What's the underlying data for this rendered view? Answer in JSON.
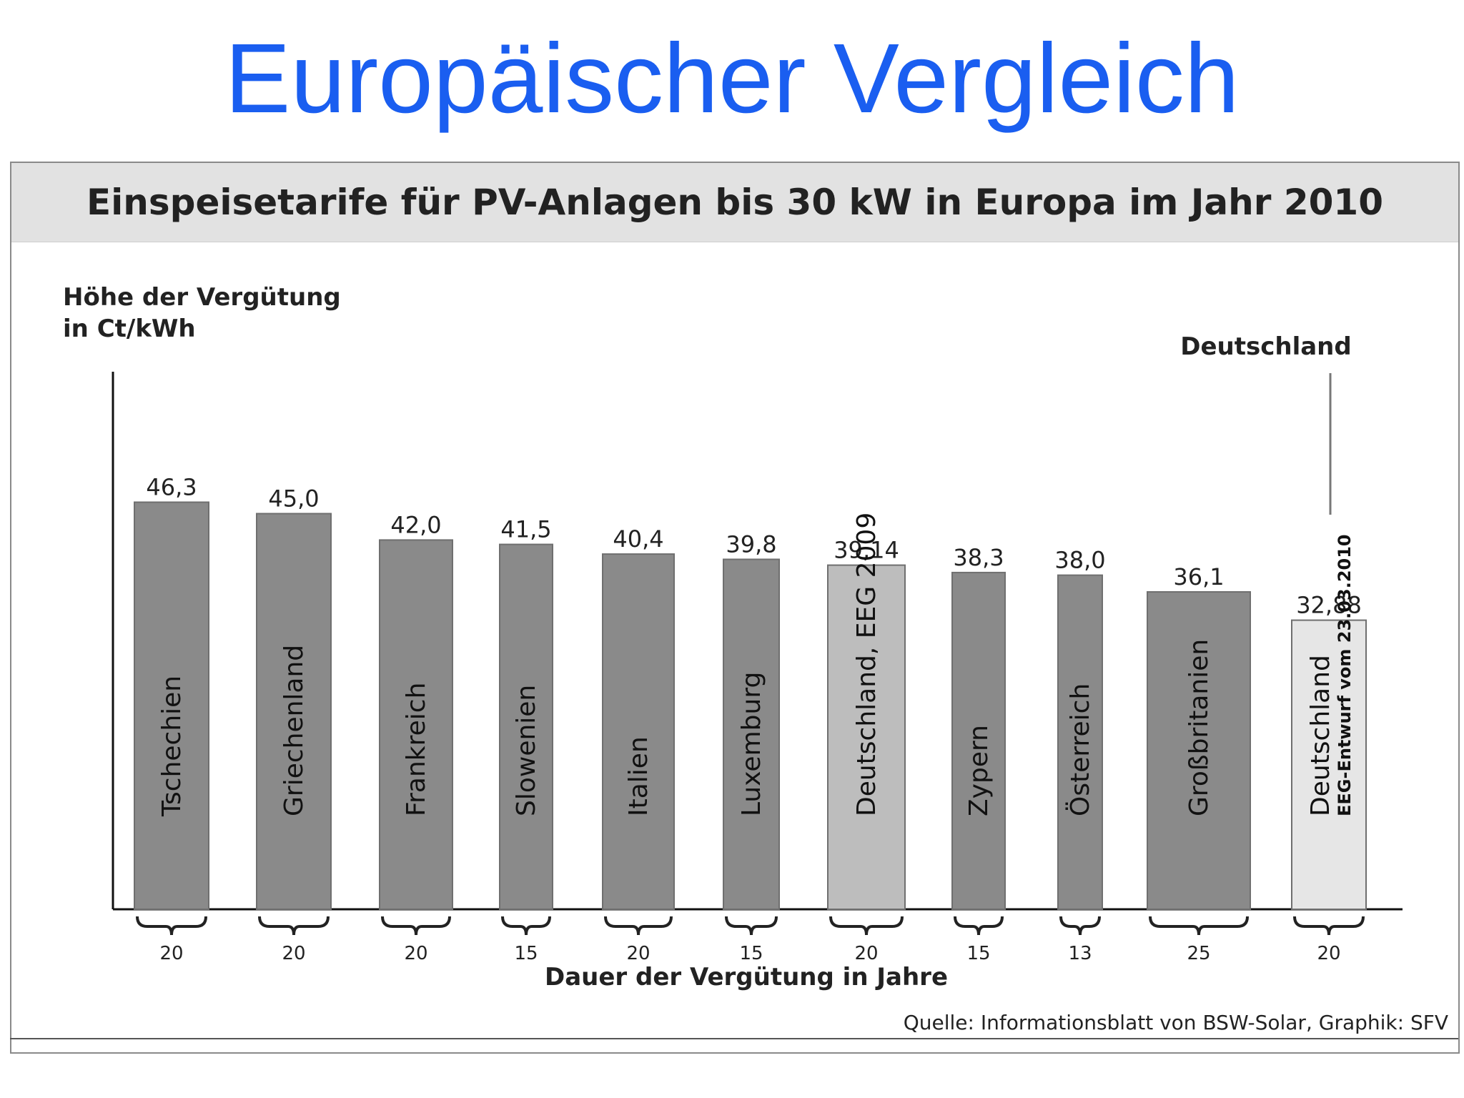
{
  "slide": {
    "title": "Europäischer Vergleich"
  },
  "chart_data": {
    "type": "bar",
    "title": "Einspeisetarife für PV-Anlagen bis 30 kW in Europa im Jahr 2010",
    "ylabel_line1": "Höhe der Vergütung",
    "ylabel_line2": "in Ct/kWh",
    "xlabel": "Dauer der Vergütung in Jahre",
    "source": "Quelle: Informationsblatt von BSW-Solar, Graphik: SFV",
    "annotation": "Deutschland",
    "ylim": [
      0,
      50
    ],
    "categories": [
      "Tschechien",
      "Griechenland",
      "Frankreich",
      "Slowenien",
      "Italien",
      "Luxemburg",
      "Deutschland, EEG 2009",
      "Zypern",
      "Österreich",
      "Großbritanien",
      "Deutschland"
    ],
    "category_sublabels": [
      "",
      "",
      "",
      "",
      "",
      "",
      "",
      "",
      "",
      "",
      "EEG-Entwurf vom 23.03.2010"
    ],
    "values": [
      46.3,
      45.0,
      42.0,
      41.5,
      40.4,
      39.8,
      39.14,
      38.3,
      38.0,
      36.1,
      32.88
    ],
    "value_labels": [
      "46,3",
      "45,0",
      "42,0",
      "41,5",
      "40,4",
      "39,8",
      "39,14",
      "38,3",
      "38,0",
      "36,1",
      "32,88"
    ],
    "duration_years": [
      "20",
      "20",
      "20",
      "15",
      "20",
      "15",
      "20",
      "15",
      "13",
      "25",
      "20"
    ],
    "bar_colors": [
      "#8a8a8a",
      "#8a8a8a",
      "#8a8a8a",
      "#8a8a8a",
      "#8a8a8a",
      "#8a8a8a",
      "#bdbdbd",
      "#8a8a8a",
      "#8a8a8a",
      "#8a8a8a",
      "#e6e6e6"
    ],
    "grid": false,
    "legend": "none"
  },
  "colors": {
    "title": "#1a5ef0",
    "header_band": "#e2e2e2",
    "bar_dark": "#8a8a8a",
    "bar_mid": "#bdbdbd",
    "bar_light": "#e6e6e6"
  }
}
